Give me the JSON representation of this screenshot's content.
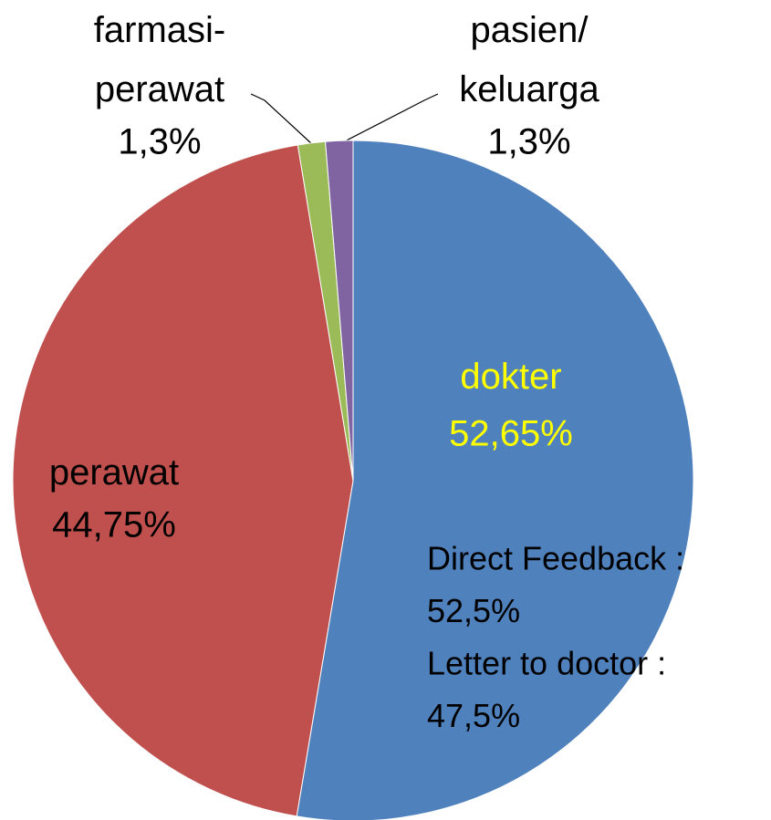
{
  "chart_data": {
    "type": "pie",
    "categories": [
      "dokter",
      "perawat",
      "farmasi-perawat",
      "pasien/keluarga"
    ],
    "values": [
      52.65,
      44.75,
      1.3,
      1.3
    ],
    "value_labels": [
      "52,65%",
      "44,75%",
      "1,3%",
      "1,3%"
    ],
    "colors": [
      "#4f81bd",
      "#c0504d",
      "#9bbb59",
      "#8064a2"
    ],
    "label_colors": [
      "#ffff00",
      "#000000",
      "#000000",
      "#000000"
    ],
    "annotations": [
      "Direct Feedback :",
      "52,5%",
      "Letter to doctor :",
      "47,5%"
    ]
  }
}
